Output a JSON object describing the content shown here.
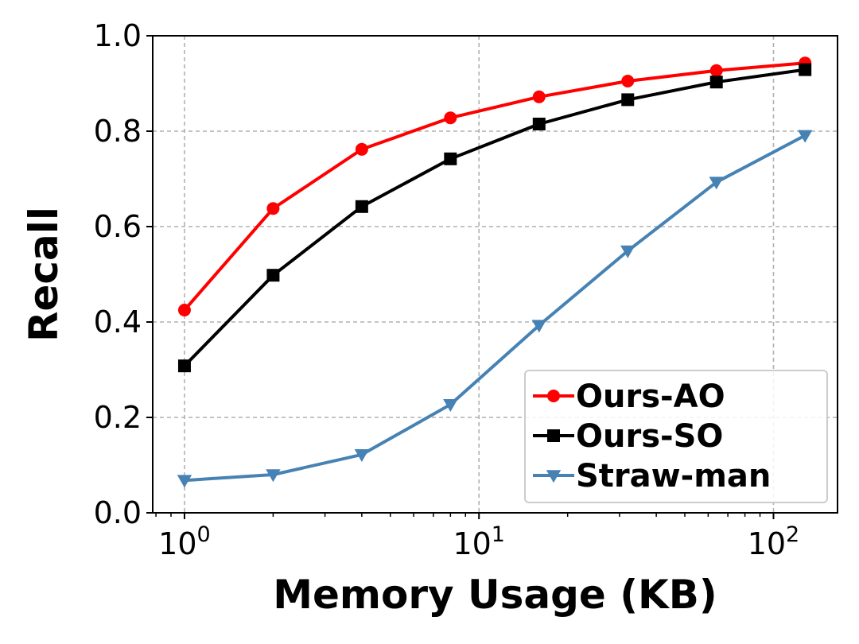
{
  "chart_data": {
    "type": "line",
    "xlabel": "Memory Usage (KB)",
    "ylabel": "Recall",
    "x_scale": "log",
    "xlim": [
      0.78,
      165
    ],
    "ylim": [
      0.0,
      1.0
    ],
    "grid": true,
    "legend_position": "bottom-right",
    "x_ticks": [
      {
        "value": 1,
        "base": "10",
        "exp": "0"
      },
      {
        "value": 10,
        "base": "10",
        "exp": "1"
      },
      {
        "value": 100,
        "base": "10",
        "exp": "2"
      }
    ],
    "y_ticks": [
      {
        "value": 0.0,
        "label": "0.0"
      },
      {
        "value": 0.2,
        "label": "0.2"
      },
      {
        "value": 0.4,
        "label": "0.4"
      },
      {
        "value": 0.6,
        "label": "0.6"
      },
      {
        "value": 0.8,
        "label": "0.8"
      },
      {
        "value": 1.0,
        "label": "1.0"
      }
    ],
    "x": [
      1,
      2,
      4,
      8,
      16,
      32,
      64,
      128
    ],
    "series": [
      {
        "name": "Ours-AO",
        "color": "#ff0000",
        "marker": "circle",
        "values": [
          0.425,
          0.638,
          0.762,
          0.828,
          0.872,
          0.905,
          0.927,
          0.943
        ]
      },
      {
        "name": "Ours-SO",
        "color": "#000000",
        "marker": "square",
        "values": [
          0.308,
          0.498,
          0.642,
          0.742,
          0.815,
          0.866,
          0.903,
          0.929
        ]
      },
      {
        "name": "Straw-man",
        "color": "#4682b4",
        "marker": "triangle-down",
        "values": [
          0.068,
          0.08,
          0.122,
          0.227,
          0.393,
          0.549,
          0.693,
          0.791
        ]
      }
    ]
  }
}
